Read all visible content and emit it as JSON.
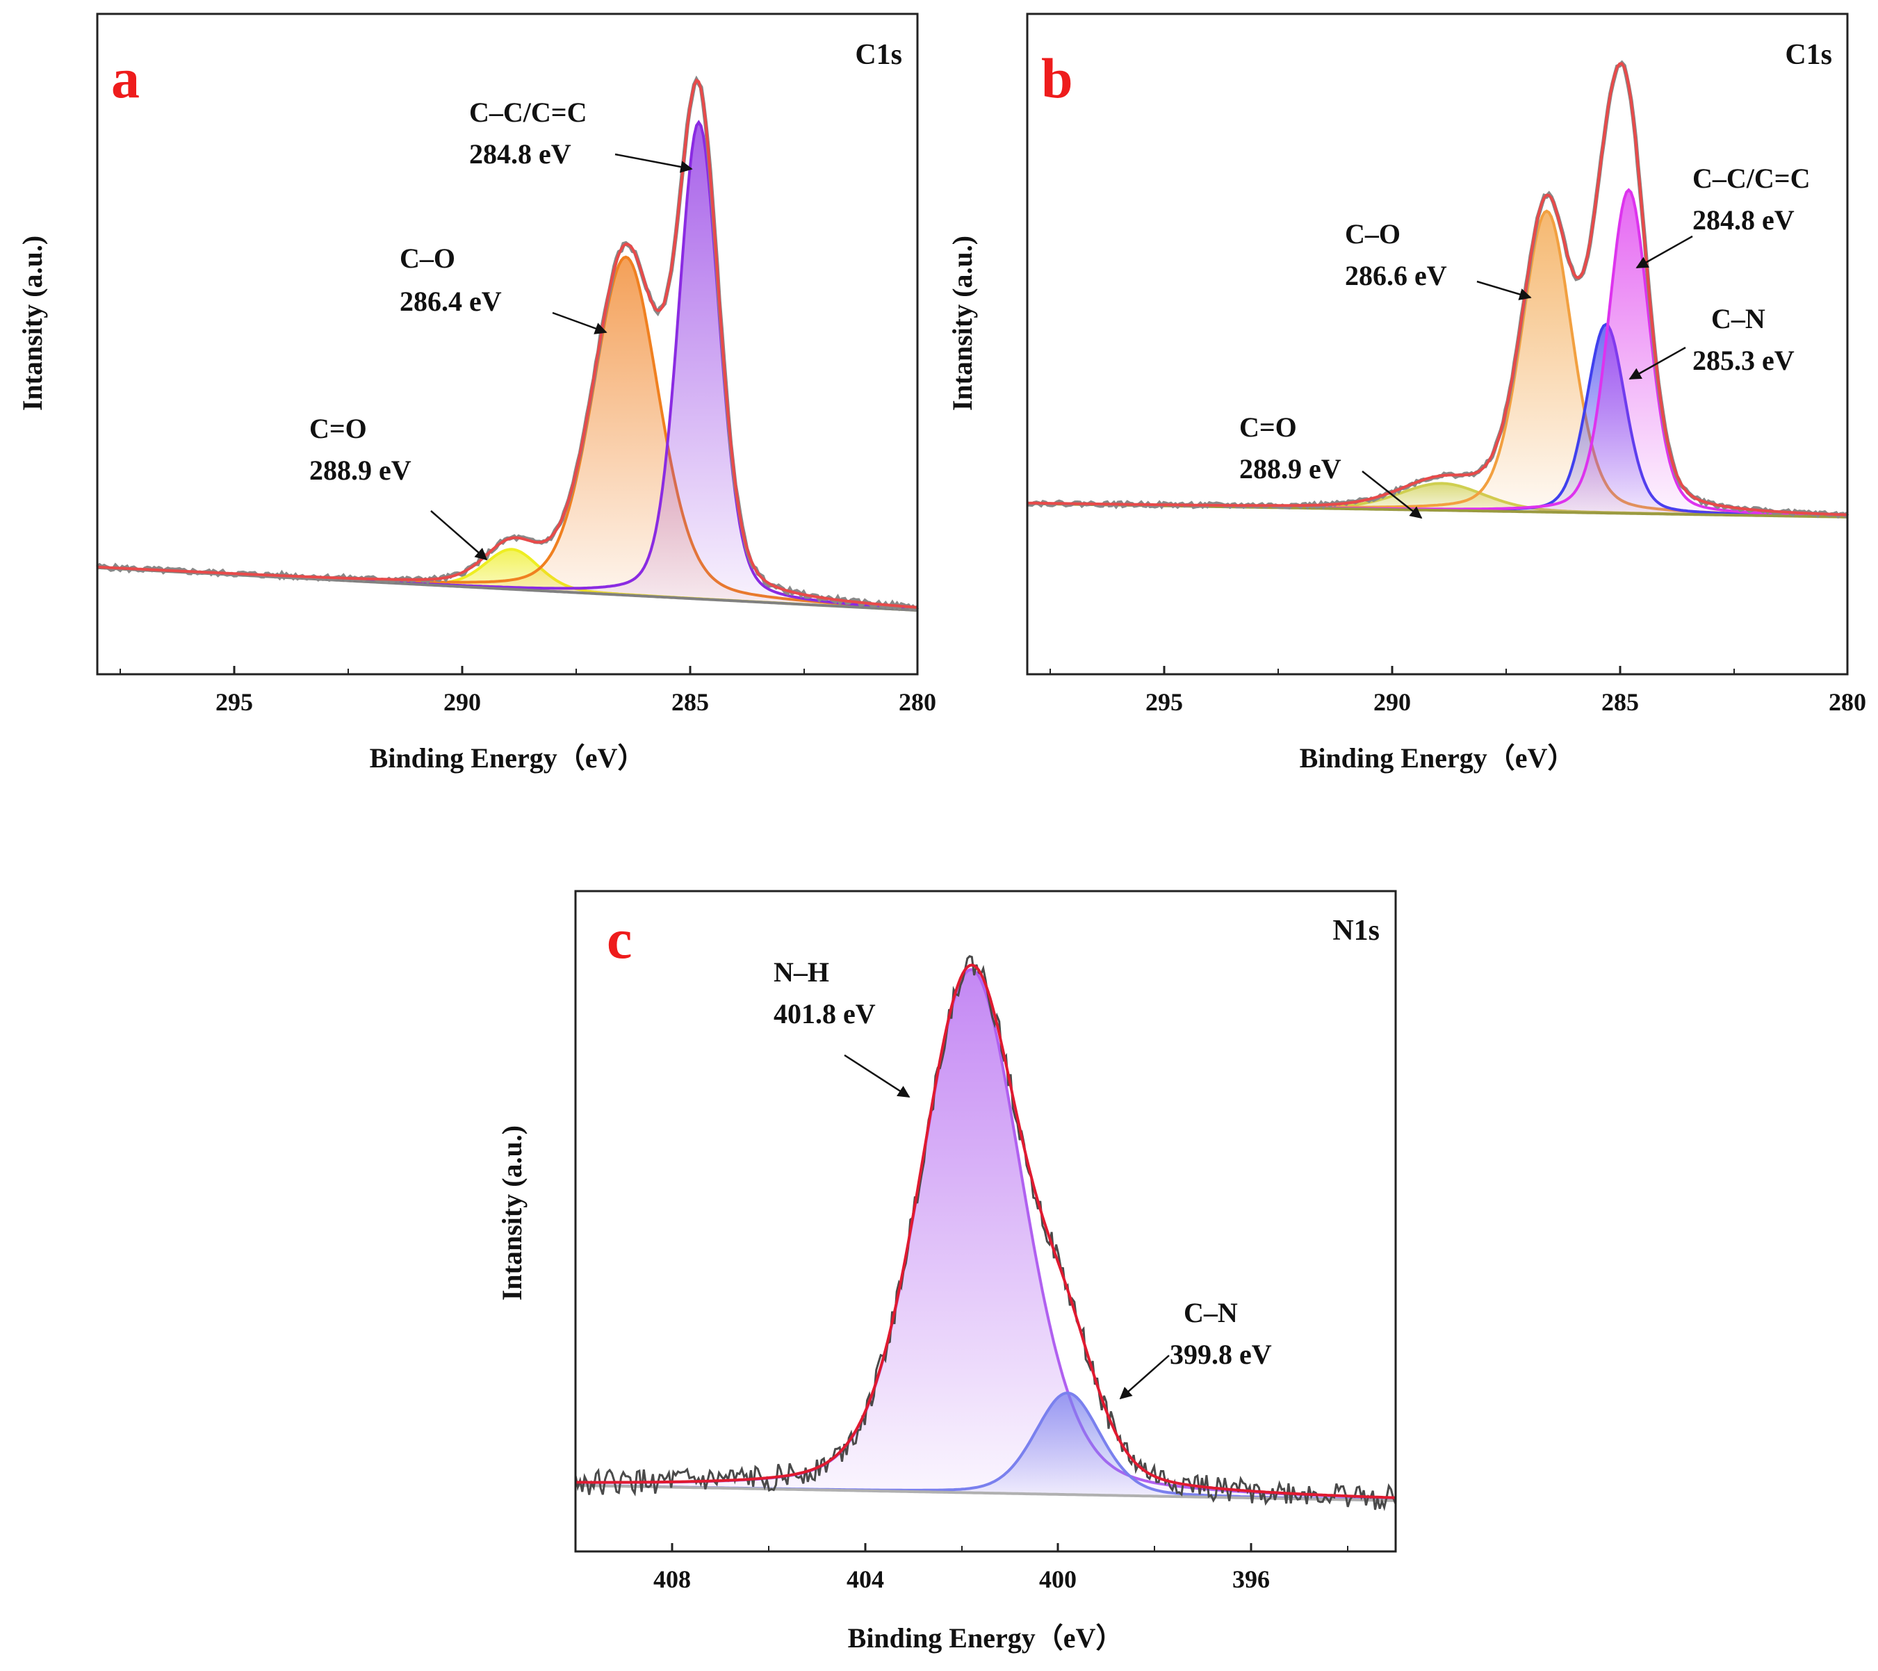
{
  "figure": {
    "panels": [
      {
        "letter": "a",
        "spectrum": "C1s",
        "xlabel": "Binding Energy（eV）",
        "ylabel": "Intansity (a.u.)",
        "ticks": [
          "295",
          "290",
          "285",
          "280"
        ]
      },
      {
        "letter": "b",
        "spectrum": "C1s",
        "xlabel": "Binding Energy（eV）",
        "ylabel": "Intansity (a.u.)",
        "ticks": [
          "295",
          "290",
          "285",
          "280"
        ]
      },
      {
        "letter": "c",
        "spectrum": "N1s",
        "xlabel": "Binding Energy（eV）",
        "ylabel": "Intansity (a.u.)",
        "ticks": [
          "408",
          "404",
          "400",
          "396"
        ]
      }
    ]
  },
  "chart_data": [
    {
      "panel": "a",
      "type": "line",
      "title": "C1s",
      "xlabel": "Binding Energy（eV）",
      "ylabel": "Intansity (a.u.)",
      "xlim": [
        298,
        280
      ],
      "x_reversed": true,
      "xticks": [
        295,
        290,
        285,
        280
      ],
      "ylim": [
        -0.12,
        1.12
      ],
      "background": {
        "start": 0.08,
        "end": 0.0,
        "color": "#808080"
      },
      "components": [
        {
          "name": "C=O",
          "energy": "288.9 eV",
          "center": 288.9,
          "height": 0.075,
          "fwhm": 1.4,
          "color": "#eeee22"
        },
        {
          "name": "C–O",
          "energy": "286.4 eV",
          "center": 286.4,
          "height": 0.635,
          "fwhm": 1.7,
          "color": "#f08020"
        },
        {
          "name": "C–C/C=C",
          "energy": "284.8 eV",
          "center": 284.8,
          "height": 0.895,
          "fwhm": 1.05,
          "color": "#8a2be2"
        }
      ],
      "envelope_color": "#e84a4a",
      "raw_color": "#888888",
      "annotations": [
        {
          "name_line": "C=O",
          "energy_line": "288.9 eV"
        },
        {
          "name_line": "C–O",
          "energy_line": "286.4 eV"
        },
        {
          "name_line": "C–C/C=C",
          "energy_line": "284.8 eV"
        }
      ]
    },
    {
      "panel": "b",
      "type": "line",
      "title": "C1s",
      "xlabel": "Binding Energy（eV）",
      "ylabel": "Intansity (a.u.)",
      "xlim": [
        298,
        280
      ],
      "x_reversed": true,
      "xticks": [
        295,
        290,
        285,
        280
      ],
      "ylim": [
        -0.35,
        1.12
      ],
      "background": {
        "start": 0.03,
        "end": 0.0,
        "color": "#9a9a40"
      },
      "components": [
        {
          "name": "C=O",
          "energy": "288.9 eV",
          "center": 288.9,
          "height": 0.06,
          "fwhm": 2.2,
          "color": "#cfcf50"
        },
        {
          "name": "C–O",
          "energy": "286.6 eV",
          "center": 286.6,
          "height": 0.67,
          "fwhm": 1.3,
          "color": "#f2a040"
        },
        {
          "name": "C–N",
          "energy": "285.3 eV",
          "center": 285.3,
          "height": 0.42,
          "fwhm": 1.0,
          "color": "#4040ee"
        },
        {
          "name": "C–C/C=C",
          "energy": "284.8 eV",
          "center": 284.8,
          "height": 0.72,
          "fwhm": 1.05,
          "color": "#dd33ee"
        }
      ],
      "envelope_color": "#e84a4a",
      "raw_color": "#888888",
      "annotations": [
        {
          "name_line": "C=O",
          "energy_line": "288.9 eV"
        },
        {
          "name_line": "C–O",
          "energy_line": "286.6 eV"
        },
        {
          "name_line": "C–N",
          "energy_line": "285.3 eV"
        },
        {
          "name_line": "C–C/C=C",
          "energy_line": "284.8 eV"
        }
      ]
    },
    {
      "panel": "c",
      "type": "line",
      "title": "N1s",
      "xlabel": "Binding Energy（eV）",
      "ylabel": "Intansity (a.u.)",
      "xlim": [
        410,
        393
      ],
      "x_reversed": true,
      "xticks": [
        408,
        404,
        400,
        396
      ],
      "ylim": [
        -0.1,
        1.2
      ],
      "background": {
        "start": 0.03,
        "end": 0.0,
        "color": "#b0b0b0"
      },
      "components": [
        {
          "name": "N–H",
          "energy": "401.8 eV",
          "center": 401.8,
          "height": 1.03,
          "fwhm": 2.5,
          "color": "#b060f0"
        },
        {
          "name": "C–N",
          "energy": "399.8 eV",
          "center": 399.8,
          "height": 0.2,
          "fwhm": 1.6,
          "color": "#7a80ee"
        }
      ],
      "envelope_color": "#e01a30",
      "raw_color": "#4a4a4a",
      "annotations": [
        {
          "name_line": "N–H",
          "energy_line": "401.8 eV"
        },
        {
          "name_line": "C–N",
          "energy_line": "399.8 eV"
        }
      ]
    }
  ]
}
